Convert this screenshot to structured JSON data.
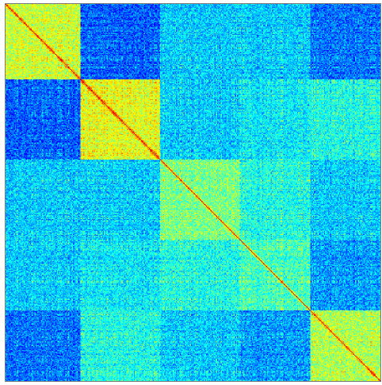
{
  "chart_data": {
    "type": "heatmap",
    "title": "",
    "xlabel": "",
    "ylabel": "",
    "colormap": "jet",
    "value_range": [
      0,
      1
    ],
    "n": 400,
    "block_boundaries": [
      0,
      80,
      165,
      250,
      325,
      400
    ],
    "blocks": [
      {
        "id": "block-1",
        "start": 0,
        "end": 80,
        "within_value": 0.58
      },
      {
        "id": "block-2",
        "start": 80,
        "end": 165,
        "within_value": 0.6
      },
      {
        "id": "block-3",
        "start": 165,
        "end": 250,
        "within_value": 0.5
      },
      {
        "id": "block-4",
        "start": 250,
        "end": 325,
        "within_value": 0.44
      },
      {
        "id": "block-5",
        "start": 325,
        "end": 400,
        "within_value": 0.55
      }
    ],
    "between_block_values": [
      [
        0.58,
        0.22,
        0.33,
        0.33,
        0.24
      ],
      [
        0.22,
        0.6,
        0.33,
        0.36,
        0.4
      ],
      [
        0.33,
        0.33,
        0.5,
        0.4,
        0.33
      ],
      [
        0.33,
        0.36,
        0.4,
        0.44,
        0.28
      ],
      [
        0.24,
        0.4,
        0.33,
        0.28,
        0.55
      ]
    ],
    "diagonal_value": 0.92,
    "noise_amplitude": 0.1,
    "grid": false,
    "legend": "none"
  }
}
